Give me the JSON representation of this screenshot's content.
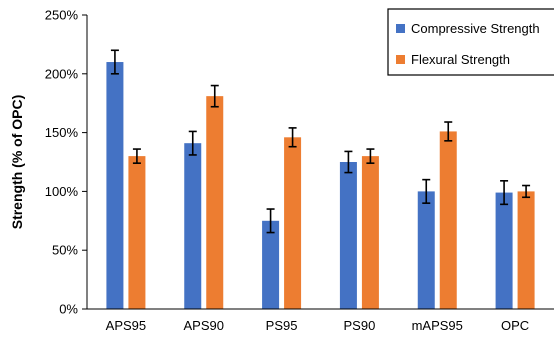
{
  "chart_data": {
    "type": "bar",
    "title": "",
    "xlabel": "",
    "ylabel": "Strength (% of OPC)",
    "categories": [
      "APS95",
      "APS90",
      "PS95",
      "PS90",
      "mAPS95",
      "OPC"
    ],
    "ylim": [
      0,
      250
    ],
    "yticks": [
      0,
      50,
      100,
      150,
      200,
      250
    ],
    "ytick_labels": [
      "0%",
      "50%",
      "100%",
      "150%",
      "200%",
      "250%"
    ],
    "grid": false,
    "legend_position": "top-right",
    "series": [
      {
        "name": "Compressive Strength",
        "color": "#4472C4",
        "values": [
          210,
          141,
          75,
          125,
          100,
          99
        ],
        "errors": [
          10,
          10,
          10,
          9,
          10,
          10
        ]
      },
      {
        "name": "Flexural Strength",
        "color": "#ED7D31",
        "values": [
          130,
          181,
          146,
          130,
          151,
          100
        ],
        "errors": [
          6,
          9,
          8,
          6,
          8,
          5
        ]
      }
    ]
  }
}
